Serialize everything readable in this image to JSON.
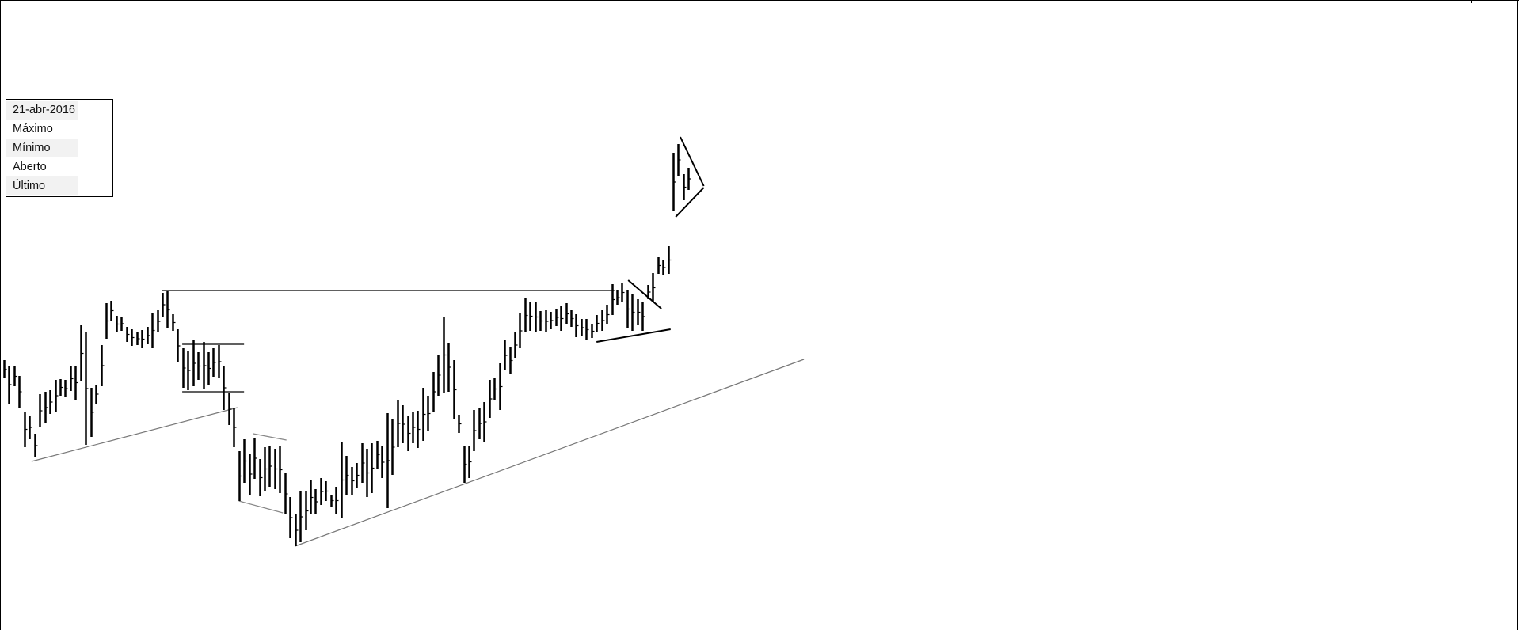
{
  "legend": {
    "date": "21-abr-2016",
    "rows": [
      "Máximo",
      "Mínimo",
      "Aberto",
      "Último"
    ]
  },
  "chart_data": {
    "type": "ohlc-bar",
    "title": "",
    "xlabel": "",
    "ylabel": "",
    "grid": false,
    "ylim": [
      0,
      800
    ],
    "bar_color": "#000000",
    "bars_high_low": [
      [
        345,
        322
      ],
      [
        338,
        290
      ],
      [
        337,
        312
      ],
      [
        325,
        285
      ],
      [
        280,
        235
      ],
      [
        275,
        245
      ],
      [
        252,
        222
      ],
      [
        302,
        260
      ],
      [
        305,
        265
      ],
      [
        307,
        277
      ],
      [
        320,
        280
      ],
      [
        321,
        300
      ],
      [
        320,
        298
      ],
      [
        337,
        306
      ],
      [
        338,
        295
      ],
      [
        389,
        318
      ],
      [
        380,
        238
      ],
      [
        310,
        248
      ],
      [
        314,
        290
      ],
      [
        364,
        312
      ],
      [
        417,
        372
      ],
      [
        420,
        395
      ],
      [
        401,
        380
      ],
      [
        400,
        382
      ],
      [
        387,
        368
      ],
      [
        384,
        363
      ],
      [
        380,
        364
      ],
      [
        383,
        360
      ],
      [
        387,
        365
      ],
      [
        405,
        360
      ],
      [
        408,
        380
      ],
      [
        430,
        400
      ],
      [
        432,
        385
      ],
      [
        403,
        382
      ],
      [
        384,
        342
      ],
      [
        360,
        310
      ],
      [
        357,
        307
      ],
      [
        370,
        312
      ],
      [
        355,
        320
      ],
      [
        368,
        308
      ],
      [
        355,
        314
      ],
      [
        360,
        324
      ],
      [
        364,
        322
      ],
      [
        338,
        282
      ],
      [
        303,
        263
      ],
      [
        285,
        235
      ],
      [
        230,
        167
      ],
      [
        245,
        190
      ],
      [
        227,
        175
      ],
      [
        247,
        195
      ],
      [
        220,
        173
      ],
      [
        235,
        180
      ],
      [
        237,
        185
      ],
      [
        233,
        182
      ],
      [
        236,
        177
      ],
      [
        202,
        150
      ],
      [
        172,
        120
      ],
      [
        150,
        110
      ],
      [
        179,
        115
      ],
      [
        179,
        130
      ],
      [
        193,
        150
      ],
      [
        182,
        150
      ],
      [
        196,
        162
      ],
      [
        192,
        167
      ],
      [
        175,
        160
      ],
      [
        185,
        150
      ],
      [
        242,
        145
      ],
      [
        224,
        175
      ],
      [
        210,
        175
      ],
      [
        215,
        184
      ],
      [
        240,
        190
      ],
      [
        233,
        172
      ],
      [
        240,
        177
      ],
      [
        243,
        208
      ],
      [
        236,
        196
      ],
      [
        278,
        158
      ],
      [
        270,
        200
      ],
      [
        295,
        235
      ],
      [
        288,
        240
      ],
      [
        275,
        230
      ],
      [
        280,
        240
      ],
      [
        281,
        234
      ],
      [
        310,
        243
      ],
      [
        300,
        255
      ],
      [
        330,
        280
      ],
      [
        352,
        300
      ],
      [
        400,
        303
      ],
      [
        367,
        305
      ],
      [
        345,
        270
      ],
      [
        276,
        253
      ],
      [
        237,
        190
      ],
      [
        237,
        196
      ],
      [
        282,
        230
      ],
      [
        285,
        245
      ],
      [
        292,
        242
      ],
      [
        320,
        272
      ],
      [
        322,
        295
      ],
      [
        341,
        282
      ],
      [
        370,
        332
      ],
      [
        361,
        328
      ],
      [
        380,
        348
      ],
      [
        404,
        360
      ],
      [
        423,
        380
      ],
      [
        419,
        382
      ],
      [
        418,
        381
      ],
      [
        407,
        382
      ],
      [
        408,
        380
      ],
      [
        406,
        384
      ],
      [
        410,
        388
      ],
      [
        413,
        382
      ],
      [
        417,
        390
      ],
      [
        408,
        387
      ],
      [
        403,
        374
      ],
      [
        397,
        375
      ],
      [
        397,
        370
      ],
      [
        390,
        373
      ],
      [
        402,
        381
      ],
      [
        408,
        382
      ],
      [
        415,
        390
      ],
      [
        441,
        402
      ],
      [
        433,
        415
      ],
      [
        443,
        418
      ],
      [
        434,
        385
      ],
      [
        429,
        382
      ],
      [
        422,
        389
      ],
      [
        418,
        382
      ],
      [
        440,
        422
      ],
      [
        455,
        418
      ],
      [
        475,
        454
      ],
      [
        472,
        452
      ],
      [
        489,
        454
      ],
      [
        607,
        533
      ],
      [
        618,
        578
      ],
      [
        580,
        547
      ],
      [
        588,
        560
      ]
    ],
    "annotations": [
      {
        "kind": "resistance",
        "color": "#000000",
        "from": [
          31,
          433
        ],
        "to": [
          119.5,
          433
        ]
      },
      {
        "kind": "range-top",
        "color": "#000000",
        "from": [
          34.9,
          365
        ],
        "to": [
          47,
          365
        ]
      },
      {
        "kind": "range-bottom",
        "color": "#000000",
        "from": [
          34.9,
          305
        ],
        "to": [
          47,
          305
        ]
      },
      {
        "kind": "trendline",
        "color": "#777777",
        "from": [
          5.4,
          217
        ],
        "to": [
          45.7,
          285
        ]
      },
      {
        "kind": "channel-top",
        "color": "#888888",
        "from": [
          48.8,
          252
        ],
        "to": [
          55.3,
          244
        ]
      },
      {
        "kind": "channel-bottom",
        "color": "#888888",
        "from": [
          46,
          167
        ],
        "to": [
          54.6,
          152
        ]
      },
      {
        "kind": "trendline",
        "color": "#777777",
        "from": [
          57,
          110
        ],
        "to": [
          156.6,
          346
        ]
      },
      {
        "kind": "support",
        "color": "#000000",
        "from": [
          116,
          368
        ],
        "to": [
          130.5,
          384
        ]
      },
      {
        "kind": "falling",
        "color": "#000000",
        "from": [
          122.2,
          446
        ],
        "to": [
          128.7,
          410
        ]
      },
      {
        "kind": "triangle-top",
        "color": "#000000",
        "from": [
          132.4,
          627
        ],
        "to": [
          137,
          565
        ]
      },
      {
        "kind": "triangle-bottom",
        "color": "#000000",
        "from": [
          131.5,
          526
        ],
        "to": [
          137,
          563
        ]
      }
    ]
  }
}
